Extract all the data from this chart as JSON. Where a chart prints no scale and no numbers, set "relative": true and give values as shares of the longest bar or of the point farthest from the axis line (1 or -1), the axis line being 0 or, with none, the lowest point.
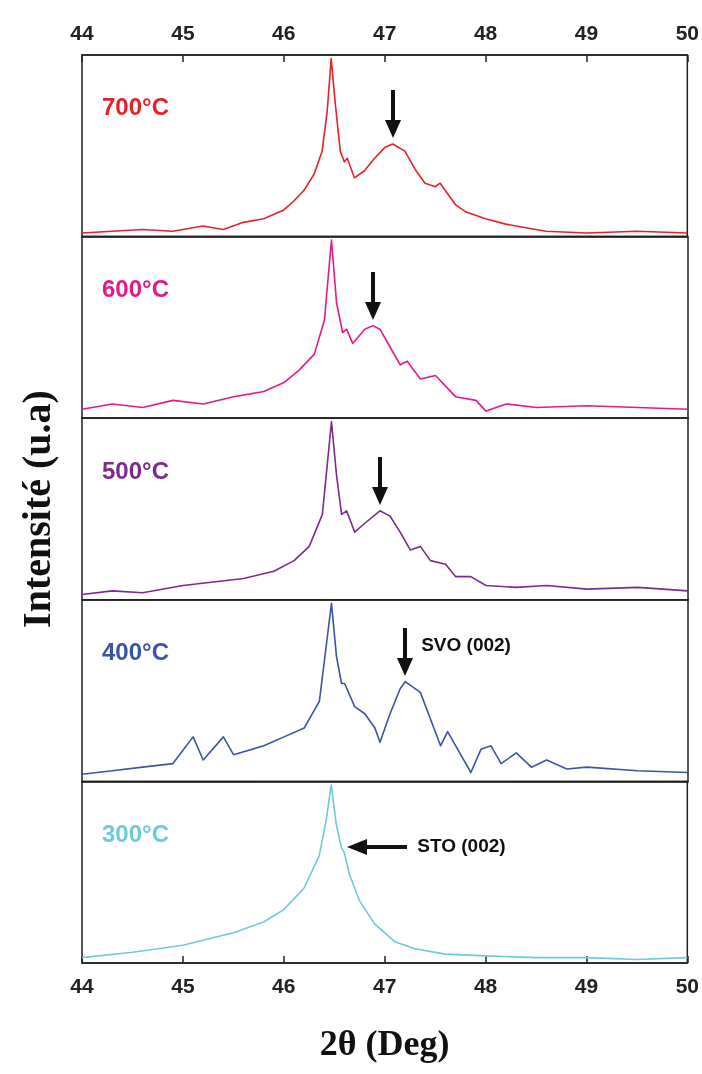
{
  "chart_data": [
    {
      "type": "line",
      "relative": true,
      "xlim": [
        44,
        50
      ],
      "x2lim": [
        44,
        50
      ],
      "x2ticks": [
        44,
        45,
        46,
        47,
        48,
        49,
        50
      ],
      "tick_labels": "x",
      "x": [
        44.0,
        44.3,
        44.6,
        44.9,
        45.2,
        45.4,
        45.6,
        45.8,
        46.0,
        46.1,
        46.2,
        46.3,
        46.38,
        46.43,
        46.47,
        46.51,
        46.56,
        46.6,
        46.63,
        46.7,
        46.8,
        46.9,
        47.0,
        47.08,
        47.2,
        47.3,
        47.4,
        47.5,
        47.55,
        47.7,
        47.8,
        47.9,
        48.0,
        48.2,
        48.4,
        48.6,
        49.0,
        49.5,
        50.0
      ],
      "series": [
        {
          "name": "700°C",
          "color": "#e8202a",
          "values": [
            0.02,
            0.03,
            0.04,
            0.03,
            0.06,
            0.04,
            0.08,
            0.1,
            0.15,
            0.2,
            0.26,
            0.35,
            0.48,
            0.7,
            1,
            0.75,
            0.48,
            0.42,
            0.44,
            0.33,
            0.37,
            0.44,
            0.5,
            0.52,
            0.48,
            0.38,
            0.3,
            0.28,
            0.3,
            0.18,
            0.14,
            0.12,
            0.1,
            0.07,
            0.05,
            0.03,
            0.02,
            0.03,
            0.02
          ]
        }
      ]
    },
    {
      "type": "line",
      "relative": true,
      "xlim": [
        44,
        50
      ],
      "tick_labels": false,
      "x": [
        44.0,
        44.3,
        44.6,
        44.9,
        45.2,
        45.5,
        45.8,
        46.0,
        46.15,
        46.3,
        46.4,
        46.47,
        46.52,
        46.58,
        46.62,
        46.68,
        46.8,
        46.88,
        46.95,
        47.05,
        47.15,
        47.22,
        47.35,
        47.5,
        47.6,
        47.7,
        47.9,
        48.0,
        48.2,
        48.5,
        49.0,
        49.5,
        50.0
      ],
      "series": [
        {
          "name": "600°C",
          "color": "#e6198a",
          "values": [
            0.05,
            0.08,
            0.06,
            0.1,
            0.08,
            0.12,
            0.15,
            0.2,
            0.27,
            0.36,
            0.55,
            1,
            0.65,
            0.48,
            0.5,
            0.42,
            0.5,
            0.52,
            0.5,
            0.4,
            0.3,
            0.32,
            0.22,
            0.24,
            0.18,
            0.12,
            0.1,
            0.04,
            0.08,
            0.06,
            0.07,
            0.06,
            0.05
          ]
        }
      ]
    },
    {
      "type": "line",
      "relative": true,
      "xlim": [
        44,
        50
      ],
      "tick_labels": false,
      "ylabel": "Intensité (u.a)",
      "x": [
        44.0,
        44.3,
        44.6,
        45.0,
        45.3,
        45.6,
        45.9,
        46.1,
        46.25,
        46.38,
        46.47,
        46.52,
        46.57,
        46.62,
        46.7,
        46.8,
        46.95,
        47.05,
        47.15,
        47.25,
        47.35,
        47.45,
        47.6,
        47.7,
        47.85,
        48.0,
        48.3,
        48.6,
        49.0,
        49.5,
        50.0
      ],
      "series": [
        {
          "name": "500°C",
          "color": "#7b2a8e",
          "values": [
            0.03,
            0.05,
            0.04,
            0.08,
            0.1,
            0.12,
            0.16,
            0.22,
            0.3,
            0.48,
            1,
            0.7,
            0.48,
            0.5,
            0.38,
            0.43,
            0.5,
            0.47,
            0.38,
            0.28,
            0.3,
            0.22,
            0.2,
            0.13,
            0.13,
            0.08,
            0.07,
            0.08,
            0.06,
            0.07,
            0.05
          ]
        }
      ]
    },
    {
      "type": "line",
      "relative": true,
      "xlim": [
        44,
        50
      ],
      "tick_labels": false,
      "x": [
        44.0,
        44.3,
        44.6,
        44.9,
        45.1,
        45.2,
        45.4,
        45.5,
        45.8,
        46.0,
        46.2,
        46.35,
        46.47,
        46.52,
        46.57,
        46.6,
        46.7,
        46.8,
        46.9,
        46.95,
        47.05,
        47.15,
        47.2,
        47.35,
        47.45,
        47.55,
        47.62,
        47.72,
        47.85,
        47.95,
        48.05,
        48.15,
        48.3,
        48.45,
        48.6,
        48.8,
        49.0,
        49.5,
        50.0
      ],
      "series": [
        {
          "name": "400°C",
          "color": "#3a55a4",
          "values": [
            0.04,
            0.06,
            0.08,
            0.1,
            0.25,
            0.12,
            0.25,
            0.15,
            0.2,
            0.25,
            0.3,
            0.45,
            1,
            0.7,
            0.55,
            0.55,
            0.42,
            0.38,
            0.3,
            0.22,
            0.38,
            0.52,
            0.56,
            0.5,
            0.35,
            0.2,
            0.28,
            0.18,
            0.05,
            0.18,
            0.2,
            0.1,
            0.16,
            0.08,
            0.12,
            0.07,
            0.08,
            0.06,
            0.05
          ]
        }
      ],
      "annotations": [
        {
          "text": "SVO (002)",
          "x": 47.2,
          "y": 0.56
        }
      ]
    },
    {
      "type": "line",
      "relative": true,
      "xlim": [
        44,
        50
      ],
      "xticks": [
        44,
        45,
        46,
        47,
        48,
        49,
        50
      ],
      "tick_labels": "x",
      "xlabel": "2θ (Deg)",
      "x": [
        44.0,
        44.5,
        45.0,
        45.5,
        45.8,
        46.0,
        46.2,
        46.35,
        46.42,
        46.47,
        46.52,
        46.57,
        46.6,
        46.65,
        46.75,
        46.9,
        47.1,
        47.3,
        47.6,
        48.0,
        48.5,
        49.0,
        49.5,
        50.0
      ],
      "series": [
        {
          "name": "300°C",
          "color": "#6fcad8",
          "values": [
            0.03,
            0.06,
            0.1,
            0.17,
            0.23,
            0.3,
            0.42,
            0.6,
            0.8,
            1,
            0.78,
            0.65,
            0.62,
            0.5,
            0.35,
            0.22,
            0.12,
            0.08,
            0.05,
            0.04,
            0.03,
            0.03,
            0.02,
            0.03
          ]
        }
      ],
      "annotations": [
        "STO (002)"
      ]
    }
  ]
}
